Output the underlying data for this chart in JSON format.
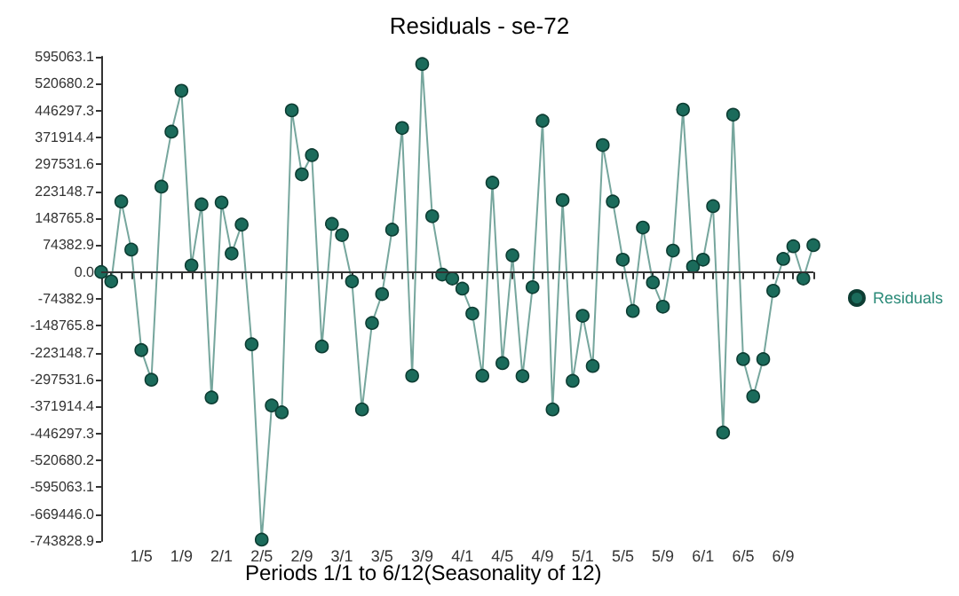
{
  "chart_data": {
    "type": "line",
    "title": "Residuals - se-72",
    "xlabel": "Periods 1/1 to 6/12(Seasonality of 12)",
    "categories": [
      null,
      null,
      null,
      null,
      "1/5",
      null,
      null,
      null,
      "1/9",
      null,
      null,
      null,
      "2/1",
      null,
      null,
      null,
      "2/5",
      null,
      null,
      null,
      "2/9",
      null,
      null,
      null,
      "3/1",
      null,
      null,
      null,
      "3/5",
      null,
      null,
      null,
      "3/9",
      null,
      null,
      null,
      "4/1",
      null,
      null,
      null,
      "4/5",
      null,
      null,
      null,
      "4/9",
      null,
      null,
      null,
      "5/1",
      null,
      null,
      null,
      "5/5",
      null,
      null,
      null,
      "5/9",
      null,
      null,
      null,
      "6/1",
      null,
      null,
      null,
      "6/5",
      null,
      null,
      null,
      "6/9",
      null,
      null,
      null
    ],
    "series": [
      {
        "name": "Residuals",
        "color": "#1b6b5b",
        "values": [
          0,
          -26000,
          195000,
          62000,
          -216000,
          -298000,
          236000,
          388000,
          501000,
          18000,
          187000,
          -347000,
          192000,
          51000,
          131000,
          -200000,
          -740000,
          -369000,
          -388000,
          447000,
          270000,
          323000,
          -206000,
          133000,
          102000,
          -26000,
          -380000,
          -141000,
          -61000,
          117000,
          398000,
          -287000,
          575000,
          154000,
          -7000,
          -18000,
          -46000,
          -115000,
          -287000,
          247000,
          -252000,
          46000,
          -288000,
          -42000,
          418000,
          -380000,
          199000,
          -301000,
          -121000,
          -260000,
          351000,
          195000,
          34000,
          -108000,
          123000,
          -29000,
          -96000,
          59000,
          449000,
          15000,
          34000,
          182000,
          -444000,
          435000,
          -241000,
          -344000,
          -241000,
          -52000,
          36000,
          71000,
          -18000,
          74000
        ]
      }
    ],
    "ylim": [
      -743828.9,
      595063.1
    ],
    "yticks": [
      595063.1,
      520680.2,
      446297.3,
      371914.4,
      297531.6,
      223148.7,
      148765.8,
      74382.9,
      {
        "value": 0,
        "label": "0.0"
      },
      -74382.9,
      -148765.8,
      -223148.7,
      -297531.6,
      -371914.4,
      -446297.3,
      -520680.2,
      -595063.1,
      {
        "value": -669446,
        "label": "-669446.0"
      },
      -743828.9
    ],
    "ref_lines": [
      {
        "axis": "y",
        "value": 0,
        "color": "#333333"
      }
    ],
    "grid": false,
    "legend": "right",
    "marker": "circle",
    "line_style": "solid"
  }
}
